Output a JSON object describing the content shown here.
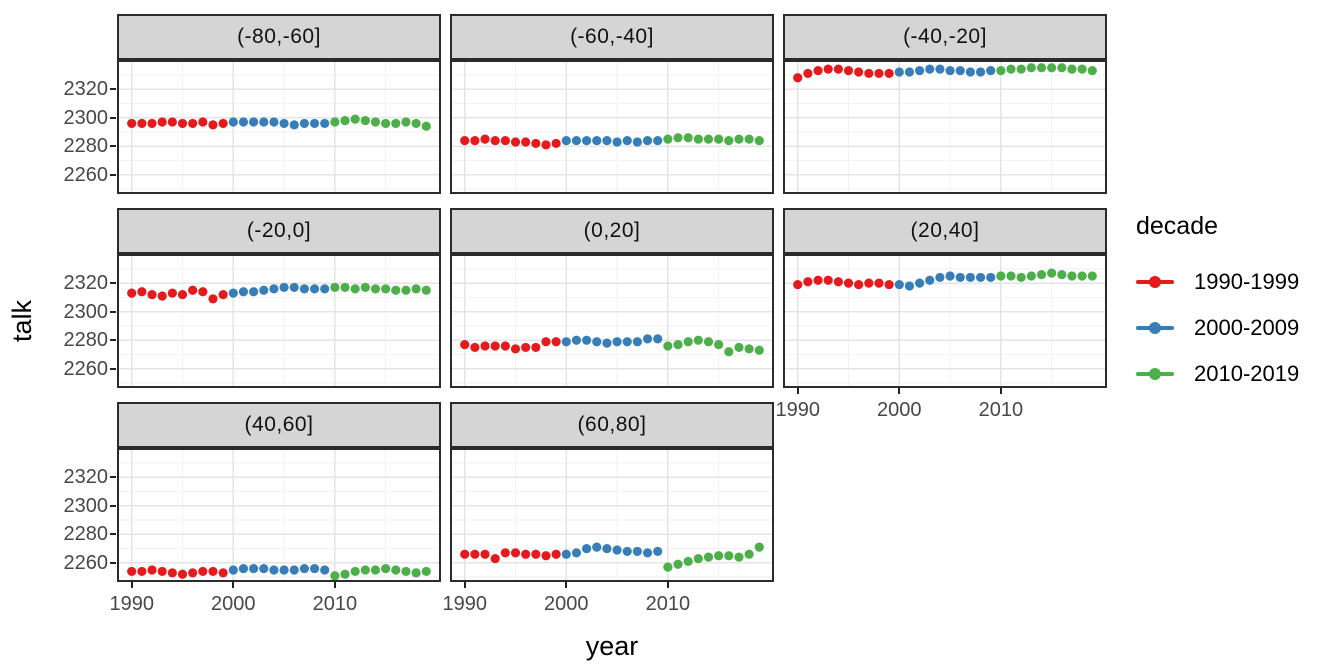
{
  "figure": {
    "y_axis_title": "talk",
    "x_axis_title": "year",
    "legend": {
      "title": "decade",
      "items": [
        {
          "label": "1990-1999",
          "color": "#E41A1C"
        },
        {
          "label": "2000-2009",
          "color": "#377EB8"
        },
        {
          "label": "2010-2019",
          "color": "#4DAF4A"
        }
      ]
    }
  },
  "chart_data": {
    "type": "scatter",
    "title": "",
    "xlabel": "year",
    "ylabel": "talk",
    "legend_title": "decade",
    "legend_position": "right",
    "grid": "on",
    "x_domain": [
      1988.55,
      2020.45
    ],
    "y_domain": [
      2246.6,
      2340.4
    ],
    "x_ticks": [
      1990,
      2000,
      2010
    ],
    "x_minor_ticks": [
      1995,
      2005,
      2015
    ],
    "y_ticks": [
      2260,
      2280,
      2300,
      2320
    ],
    "y_minor_ticks": [
      2250,
      2270,
      2290,
      2310,
      2330
    ],
    "colors": {
      "major_grid": "#e4e4e4",
      "minor_grid": "#f2f2f2",
      "strip_fill": "#d5d5d5",
      "panel_border": "#2b2b2b"
    },
    "series_names": [
      "1990-1999",
      "2000-2009",
      "2010-2019"
    ],
    "series_colors": [
      "#E41A1C",
      "#377EB8",
      "#4DAF4A"
    ],
    "panels": [
      {
        "label": "(-80,-60]",
        "row": 0,
        "col": 0,
        "show_y_axis": true,
        "show_x_axis": false,
        "series": [
          {
            "name": "1990-1999",
            "color": "#E41A1C",
            "x_start": 1990,
            "values": [
              2296,
              2296,
              2296,
              2297,
              2297,
              2296,
              2296,
              2297,
              2295,
              2296
            ]
          },
          {
            "name": "2000-2009",
            "color": "#377EB8",
            "x_start": 2000,
            "values": [
              2297,
              2297,
              2297,
              2297,
              2297,
              2296,
              2295,
              2296,
              2296,
              2296
            ]
          },
          {
            "name": "2010-2019",
            "color": "#4DAF4A",
            "x_start": 2010,
            "values": [
              2297,
              2298,
              2299,
              2298,
              2297,
              2296,
              2296,
              2297,
              2296,
              2294
            ]
          }
        ]
      },
      {
        "label": "(-60,-40]",
        "row": 0,
        "col": 1,
        "show_y_axis": false,
        "show_x_axis": false,
        "series": [
          {
            "name": "1990-1999",
            "color": "#E41A1C",
            "x_start": 1990,
            "values": [
              2284,
              2284,
              2285,
              2284,
              2284,
              2283,
              2283,
              2282,
              2281,
              2282
            ]
          },
          {
            "name": "2000-2009",
            "color": "#377EB8",
            "x_start": 2000,
            "values": [
              2284,
              2284,
              2284,
              2284,
              2284,
              2283,
              2284,
              2283,
              2284,
              2284
            ]
          },
          {
            "name": "2010-2019",
            "color": "#4DAF4A",
            "x_start": 2010,
            "values": [
              2285,
              2286,
              2286,
              2285,
              2285,
              2285,
              2284,
              2285,
              2285,
              2284
            ]
          }
        ]
      },
      {
        "label": "(-40,-20]",
        "row": 0,
        "col": 2,
        "show_y_axis": false,
        "show_x_axis": false,
        "series": [
          {
            "name": "1990-1999",
            "color": "#E41A1C",
            "x_start": 1990,
            "values": [
              2328,
              2331,
              2333,
              2334,
              2334,
              2333,
              2332,
              2331,
              2331,
              2331
            ]
          },
          {
            "name": "2000-2009",
            "color": "#377EB8",
            "x_start": 2000,
            "values": [
              2332,
              2332,
              2333,
              2334,
              2334,
              2333,
              2333,
              2332,
              2332,
              2333
            ]
          },
          {
            "name": "2010-2019",
            "color": "#4DAF4A",
            "x_start": 2010,
            "values": [
              2333,
              2334,
              2334,
              2335,
              2335,
              2335,
              2335,
              2334,
              2334,
              2333
            ]
          }
        ]
      },
      {
        "label": "(-20,0]",
        "row": 1,
        "col": 0,
        "show_y_axis": true,
        "show_x_axis": false,
        "series": [
          {
            "name": "1990-1999",
            "color": "#E41A1C",
            "x_start": 1990,
            "values": [
              2313,
              2314,
              2312,
              2311,
              2313,
              2312,
              2315,
              2314,
              2309,
              2312
            ]
          },
          {
            "name": "2000-2009",
            "color": "#377EB8",
            "x_start": 2000,
            "values": [
              2313,
              2314,
              2314,
              2315,
              2316,
              2317,
              2317,
              2316,
              2316,
              2316
            ]
          },
          {
            "name": "2010-2019",
            "color": "#4DAF4A",
            "x_start": 2010,
            "values": [
              2317,
              2317,
              2316,
              2317,
              2316,
              2316,
              2315,
              2315,
              2316,
              2315
            ]
          }
        ]
      },
      {
        "label": "(0,20]",
        "row": 1,
        "col": 1,
        "show_y_axis": false,
        "show_x_axis": false,
        "series": [
          {
            "name": "1990-1999",
            "color": "#E41A1C",
            "x_start": 1990,
            "values": [
              2277,
              2275,
              2276,
              2276,
              2276,
              2274,
              2275,
              2275,
              2279,
              2279
            ]
          },
          {
            "name": "2000-2009",
            "color": "#377EB8",
            "x_start": 2000,
            "values": [
              2279,
              2280,
              2280,
              2279,
              2278,
              2279,
              2279,
              2279,
              2281,
              2281
            ]
          },
          {
            "name": "2010-2019",
            "color": "#4DAF4A",
            "x_start": 2010,
            "values": [
              2276,
              2277,
              2279,
              2280,
              2279,
              2277,
              2272,
              2275,
              2274,
              2273
            ]
          }
        ]
      },
      {
        "label": "(20,40]",
        "row": 1,
        "col": 2,
        "show_y_axis": false,
        "show_x_axis": true,
        "series": [
          {
            "name": "1990-1999",
            "color": "#E41A1C",
            "x_start": 1990,
            "values": [
              2319,
              2321,
              2322,
              2322,
              2321,
              2320,
              2319,
              2320,
              2320,
              2319
            ]
          },
          {
            "name": "2000-2009",
            "color": "#377EB8",
            "x_start": 2000,
            "values": [
              2319,
              2318,
              2320,
              2322,
              2324,
              2325,
              2324,
              2324,
              2324,
              2324
            ]
          },
          {
            "name": "2010-2019",
            "color": "#4DAF4A",
            "x_start": 2010,
            "values": [
              2325,
              2325,
              2324,
              2325,
              2326,
              2327,
              2326,
              2325,
              2325,
              2325
            ]
          }
        ]
      },
      {
        "label": "(40,60]",
        "row": 2,
        "col": 0,
        "show_y_axis": true,
        "show_x_axis": true,
        "series": [
          {
            "name": "1990-1999",
            "color": "#E41A1C",
            "x_start": 1990,
            "values": [
              2254,
              2254,
              2255,
              2254,
              2253,
              2252,
              2253,
              2254,
              2254,
              2253
            ]
          },
          {
            "name": "2000-2009",
            "color": "#377EB8",
            "x_start": 2000,
            "values": [
              2255,
              2256,
              2256,
              2256,
              2255,
              2255,
              2255,
              2256,
              2256,
              2255
            ]
          },
          {
            "name": "2010-2019",
            "color": "#4DAF4A",
            "x_start": 2010,
            "values": [
              2251,
              2252,
              2254,
              2255,
              2255,
              2256,
              2255,
              2254,
              2253,
              2254
            ]
          }
        ]
      },
      {
        "label": "(60,80]",
        "row": 2,
        "col": 1,
        "show_y_axis": false,
        "show_x_axis": true,
        "series": [
          {
            "name": "1990-1999",
            "color": "#E41A1C",
            "x_start": 1990,
            "values": [
              2266,
              2266,
              2266,
              2263,
              2267,
              2267,
              2266,
              2266,
              2265,
              2266
            ]
          },
          {
            "name": "2000-2009",
            "color": "#377EB8",
            "x_start": 2000,
            "values": [
              2266,
              2267,
              2270,
              2271,
              2270,
              2269,
              2268,
              2268,
              2267,
              2268
            ]
          },
          {
            "name": "2010-2019",
            "color": "#4DAF4A",
            "x_start": 2010,
            "values": [
              2257,
              2259,
              2261,
              2263,
              2264,
              2265,
              2265,
              2264,
              2266,
              2271
            ]
          }
        ]
      }
    ]
  }
}
